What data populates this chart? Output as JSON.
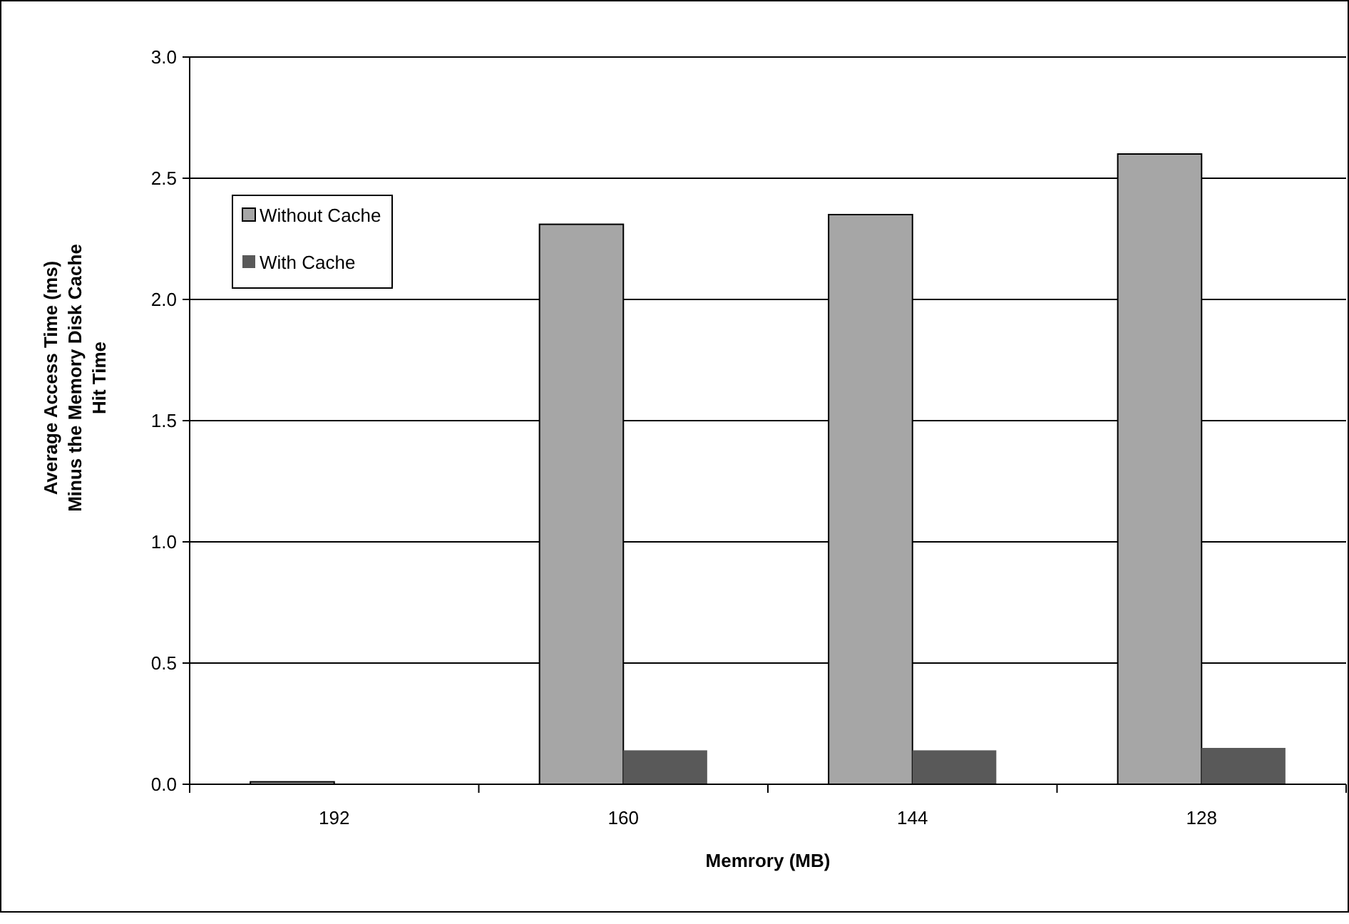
{
  "chart_data": {
    "type": "bar",
    "xlabel": "Memrory (MB)",
    "ylabel": "Average Access Time (ms)\nMinus the Memory Disk Cache\nHit Time",
    "categories": [
      "192",
      "160",
      "144",
      "128"
    ],
    "series": [
      {
        "name": "Without Cache",
        "color": "#a6a6a6",
        "values": [
          0.01,
          2.31,
          2.35,
          2.6
        ]
      },
      {
        "name": "With Cache",
        "color": "#595959",
        "values": [
          0,
          0.14,
          0.14,
          0.15
        ]
      }
    ],
    "ylim": [
      0,
      3
    ],
    "yticks": [
      {
        "value": 0,
        "label": "0.0"
      },
      {
        "value": 0.5,
        "label": "0.5"
      },
      {
        "value": 1,
        "label": "1.0"
      },
      {
        "value": 1.5,
        "label": "1.5"
      },
      {
        "value": 2,
        "label": "2.0"
      },
      {
        "value": 2.5,
        "label": "2.5"
      },
      {
        "value": 3,
        "label": "3.0"
      }
    ],
    "grid": "y",
    "legend": "top left"
  }
}
